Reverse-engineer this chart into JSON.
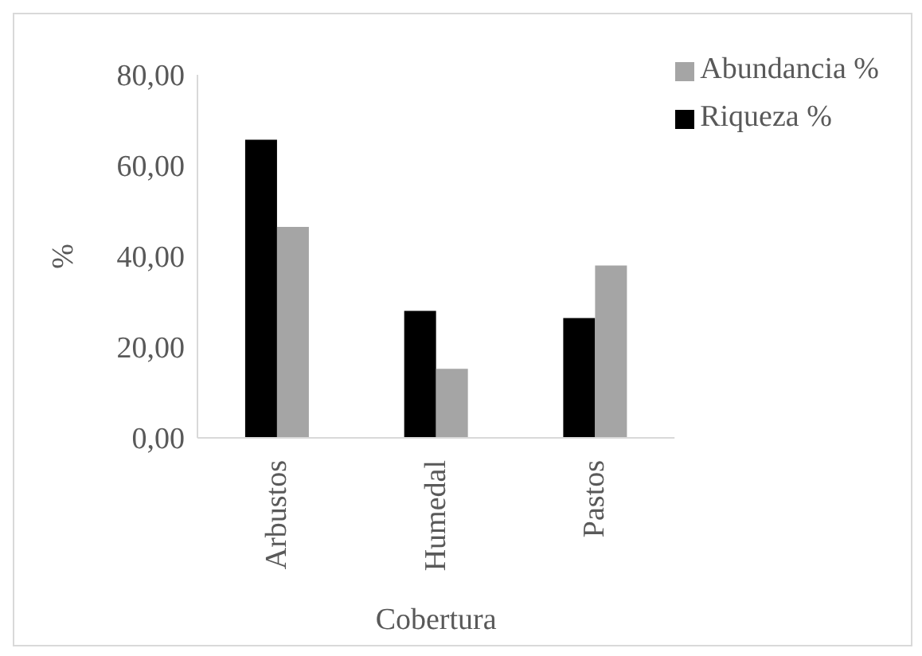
{
  "chart_data": {
    "type": "bar",
    "xlabel": "Cobertura",
    "ylabel": "%",
    "categories": [
      "Arbustos",
      "Humedal",
      "Pastos"
    ],
    "series": [
      {
        "name": "Riqueza %",
        "color": "#000000",
        "values": [
          65.7,
          28.0,
          26.4
        ]
      },
      {
        "name": "Abundancia %",
        "color": "#a5a5a5",
        "values": [
          46.5,
          15.2,
          38.0
        ]
      }
    ],
    "ylim": [
      0,
      80
    ],
    "yticks": [
      {
        "value": 0,
        "label": "0,00"
      },
      {
        "value": 20,
        "label": "20,00"
      },
      {
        "value": 40,
        "label": "40,00"
      },
      {
        "value": 60,
        "label": "60,00"
      },
      {
        "value": 80,
        "label": "80,00"
      }
    ],
    "grid": false,
    "legend": "top right"
  }
}
